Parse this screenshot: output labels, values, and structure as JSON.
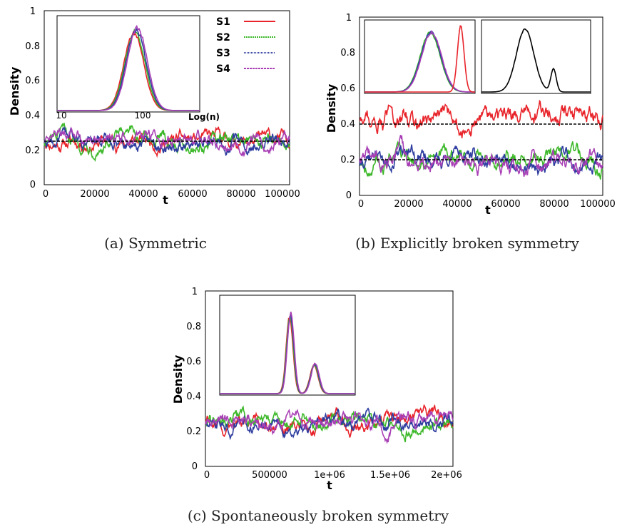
{
  "colors": {
    "S1": "#e8232a",
    "S2": "#3cb829",
    "S3": "#2e3d9f",
    "S4": "#a83fb5",
    "ref": "#000000"
  },
  "chart_data": [
    {
      "id": "a",
      "type": "line",
      "caption": "(a) Symmetric",
      "xlabel": "t",
      "ylabel": "Density",
      "xlim": [
        0,
        100000
      ],
      "ylim": [
        0,
        1
      ],
      "xticks": [
        "0",
        "20000",
        "40000",
        "60000",
        "80000",
        "100000"
      ],
      "yticks": [
        "0",
        "0.2",
        "0.4",
        "0.6",
        "0.8",
        "1"
      ],
      "reference_lines": [
        0.25
      ],
      "series": [
        {
          "name": "S1",
          "mean": 0.25,
          "amp": 0.05
        },
        {
          "name": "S2",
          "mean": 0.25,
          "amp": 0.05
        },
        {
          "name": "S3",
          "mean": 0.25,
          "amp": 0.05
        },
        {
          "name": "S4",
          "mean": 0.25,
          "amp": 0.05
        }
      ],
      "legend": {
        "placement": "top-right",
        "entries": [
          "S1",
          "S2",
          "S3",
          "S4"
        ]
      },
      "inset": {
        "type": "histogram-line",
        "x_scale": "log",
        "xlabel": "Log(n)",
        "xticks": [
          "10",
          "100"
        ],
        "peaks": [
          {
            "pos": 0.55,
            "height": 0.95,
            "width": 0.07
          }
        ]
      }
    },
    {
      "id": "b",
      "type": "line",
      "caption": "(b) Explicitly broken symmetry",
      "xlabel": "t",
      "ylabel": "Density",
      "xlim": [
        0,
        100000
      ],
      "ylim": [
        0,
        1
      ],
      "xticks": [
        "0",
        "20000",
        "40000",
        "60000",
        "80000",
        "100000"
      ],
      "yticks": [
        "0",
        "0.2",
        "0.4",
        "0.6",
        "0.8",
        "1"
      ],
      "reference_lines": [
        0.4,
        0.2
      ],
      "series": [
        {
          "name": "S1",
          "mean": 0.43,
          "amp": 0.07
        },
        {
          "name": "S2",
          "mean": 0.2,
          "amp": 0.06
        },
        {
          "name": "S3",
          "mean": 0.2,
          "amp": 0.06
        },
        {
          "name": "S4",
          "mean": 0.19,
          "amp": 0.06
        }
      ],
      "insets": [
        {
          "type": "histogram-line",
          "peaks": [
            {
              "series": "S2-S4",
              "pos": 0.6,
              "height": 0.9
            },
            {
              "series": "S1",
              "pos": 0.87,
              "height": 1.0
            }
          ]
        },
        {
          "type": "histogram-line",
          "peaks": [
            {
              "pos": 0.4,
              "height": 0.95
            },
            {
              "pos": 0.66,
              "height": 0.35
            }
          ]
        }
      ]
    },
    {
      "id": "c",
      "type": "line",
      "caption": "(c) Spontaneously broken symmetry",
      "xlabel": "t",
      "ylabel": "Density",
      "xlim": [
        0,
        2000000
      ],
      "ylim": [
        0,
        1
      ],
      "xticks": [
        "0",
        "500000",
        "1e+06",
        "1.5e+06",
        "2e+06"
      ],
      "yticks": [
        "0",
        "0.2",
        "0.4",
        "0.6",
        "0.8",
        "1"
      ],
      "series": [
        {
          "name": "S1",
          "mean": 0.25,
          "amp": 0.05
        },
        {
          "name": "S2",
          "mean": 0.25,
          "amp": 0.05
        },
        {
          "name": "S3",
          "mean": 0.25,
          "amp": 0.05
        },
        {
          "name": "S4",
          "mean": 0.25,
          "amp": 0.05
        }
      ],
      "inset": {
        "type": "histogram-line",
        "peaks": [
          {
            "pos": 0.52,
            "height": 0.9,
            "width": 0.025
          },
          {
            "pos": 0.7,
            "height": 0.33,
            "width": 0.03
          }
        ]
      }
    }
  ]
}
